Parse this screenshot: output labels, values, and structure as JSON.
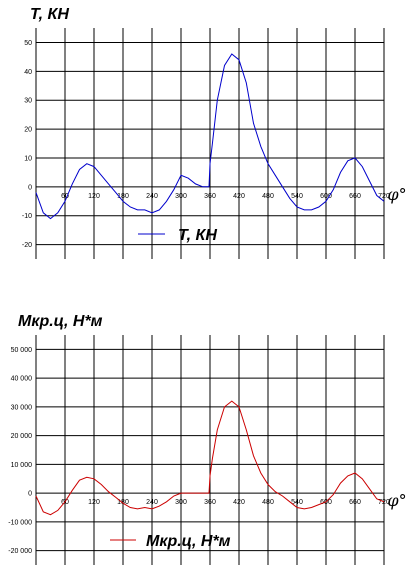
{
  "chart_data": [
    {
      "type": "line",
      "title": "T, КН",
      "xlabel": "φ°",
      "ylabel": "",
      "xlim": [
        0,
        720
      ],
      "ylim": [
        -25,
        55
      ],
      "x_ticks": [
        60,
        120,
        180,
        240,
        300,
        360,
        420,
        480,
        540,
        600,
        660,
        720
      ],
      "y_ticks": [
        50,
        40,
        30,
        20,
        10,
        0,
        -10,
        -20
      ],
      "y_tick_labels": [
        "50",
        "40",
        "30",
        "20",
        "10",
        "0",
        "-10",
        "-20"
      ],
      "grid": true,
      "legend": "bottom-center",
      "series": [
        {
          "name": "T, КН",
          "color": "#0000cc",
          "x": [
            0,
            15,
            30,
            45,
            60,
            75,
            90,
            105,
            120,
            135,
            150,
            165,
            180,
            195,
            210,
            225,
            240,
            255,
            270,
            285,
            300,
            315,
            330,
            345,
            358,
            360,
            365,
            375,
            390,
            405,
            420,
            435,
            450,
            465,
            480,
            495,
            510,
            525,
            540,
            555,
            570,
            585,
            600,
            615,
            630,
            645,
            660,
            675,
            690,
            705,
            720
          ],
          "y": [
            -2,
            -9,
            -11,
            -9,
            -5,
            1,
            6,
            8,
            7,
            4,
            1,
            -2,
            -5,
            -7,
            -8,
            -8,
            -9,
            -8,
            -5,
            -1,
            4,
            3,
            1,
            0,
            0,
            8,
            15,
            30,
            42,
            46,
            44,
            36,
            22,
            14,
            8,
            4,
            0,
            -4,
            -7,
            -8,
            -8,
            -7,
            -5,
            -1,
            5,
            9,
            10,
            7,
            2,
            -3,
            -5
          ]
        }
      ]
    },
    {
      "type": "line",
      "title": "Мкр.ц, Н*м",
      "xlabel": "φ°",
      "ylabel": "",
      "xlim": [
        0,
        720
      ],
      "ylim": [
        -25000,
        55000
      ],
      "x_ticks": [
        60,
        120,
        180,
        240,
        300,
        360,
        420,
        480,
        540,
        600,
        660,
        720
      ],
      "y_ticks": [
        50000,
        40000,
        30000,
        20000,
        10000,
        0,
        -10000,
        -20000
      ],
      "y_tick_labels": [
        "50 000",
        "40 000",
        "30 000",
        "20 000",
        "10 000",
        "0",
        "-10 000",
        "-20 000"
      ],
      "grid": true,
      "legend": "bottom-center",
      "series": [
        {
          "name": "Мкр.ц, Н*м",
          "color": "#cc0000",
          "x": [
            0,
            15,
            30,
            45,
            60,
            75,
            90,
            105,
            120,
            135,
            150,
            165,
            180,
            195,
            210,
            225,
            240,
            255,
            270,
            285,
            300,
            315,
            330,
            345,
            358,
            360,
            365,
            375,
            390,
            405,
            420,
            435,
            450,
            465,
            480,
            495,
            510,
            525,
            540,
            555,
            570,
            585,
            600,
            615,
            630,
            645,
            660,
            675,
            690,
            705,
            720
          ],
          "y": [
            -1000,
            -6500,
            -7500,
            -6000,
            -3000,
            1000,
            4500,
            5500,
            5000,
            3000,
            500,
            -1500,
            -3500,
            -5000,
            -5500,
            -5000,
            -5500,
            -4500,
            -3000,
            -1000,
            0,
            0,
            0,
            0,
            0,
            6000,
            12000,
            22000,
            30000,
            32000,
            30000,
            22000,
            13000,
            7000,
            3000,
            500,
            -1000,
            -3000,
            -5000,
            -5500,
            -5000,
            -4000,
            -3000,
            -500,
            3500,
            6000,
            7000,
            5000,
            1500,
            -2000,
            -3000
          ]
        }
      ]
    }
  ]
}
